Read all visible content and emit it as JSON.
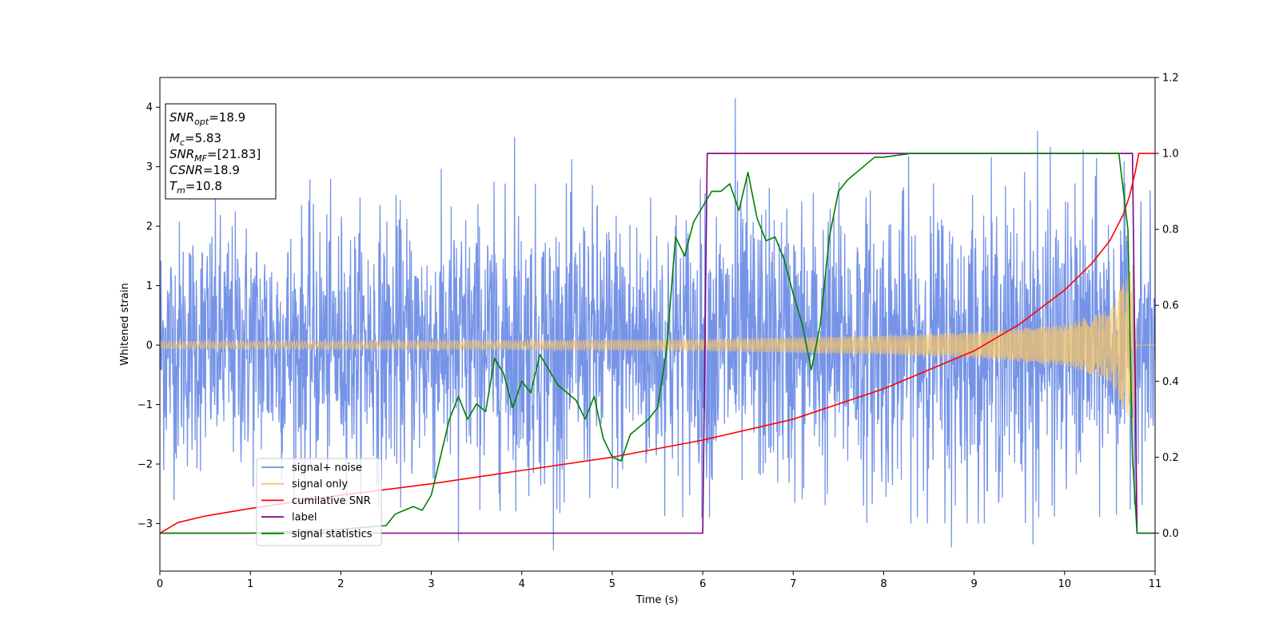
{
  "chart_data": {
    "type": "line",
    "xlabel": "Time (s)",
    "ylabel": "Whitened strain",
    "xlim": [
      0,
      11
    ],
    "ylim_left": [
      -3.8,
      4.5
    ],
    "ylim_right": [
      -0.1,
      1.2
    ],
    "x_ticks": [
      "0",
      "1",
      "2",
      "3",
      "4",
      "5",
      "6",
      "7",
      "8",
      "9",
      "10",
      "11"
    ],
    "y_left_ticks": [
      "−3",
      "−2",
      "−1",
      "0",
      "1",
      "2",
      "3",
      "4"
    ],
    "y_right_ticks": [
      "0.0",
      "0.2",
      "0.4",
      "0.6",
      "0.8",
      "1.0",
      "1.2"
    ],
    "grid": false,
    "legend_position": "lower-left",
    "colors": {
      "noise": "#6f8ee6",
      "signal": "#f5c46b",
      "cumulative": "#ff0000",
      "label": "#800080",
      "statistics": "#008000"
    },
    "series": [
      {
        "name": "signal+ noise",
        "axis": "left",
        "kind": "noise-band",
        "envelope_approx": {
          "x": [
            0,
            2,
            4,
            6,
            8,
            9.5,
            10.5,
            11
          ],
          "lower": [
            -2.6,
            -2.7,
            -2.8,
            -2.9,
            -3.0,
            -3.0,
            -2.9,
            -2.6
          ],
          "upper": [
            2.7,
            2.8,
            3.1,
            3.2,
            3.3,
            3.3,
            3.4,
            2.5
          ]
        },
        "peaks_approx": [
          {
            "x": 6.36,
            "y": 4.15
          },
          {
            "x": 3.92,
            "y": 3.5
          },
          {
            "x": 9.7,
            "y": 3.6
          },
          {
            "x": 4.35,
            "y": -3.45
          },
          {
            "x": 8.75,
            "y": -3.4
          },
          {
            "x": 9.65,
            "y": -3.35
          },
          {
            "x": 3.3,
            "y": -3.3
          }
        ]
      },
      {
        "name": "signal only",
        "axis": "left",
        "kind": "chirp",
        "amplitude_approx": {
          "x": [
            0,
            2,
            4,
            6,
            8,
            9,
            10,
            10.5,
            10.78,
            10.8,
            11
          ],
          "y": [
            0.06,
            0.07,
            0.08,
            0.1,
            0.16,
            0.22,
            0.35,
            0.6,
            1.45,
            0.0,
            0.0
          ]
        }
      },
      {
        "name": "cumilative SNR",
        "axis": "right",
        "x": [
          0,
          0.2,
          0.5,
          1,
          2,
          3,
          4,
          5,
          6,
          7,
          8,
          9,
          9.5,
          10,
          10.3,
          10.5,
          10.65,
          10.72,
          10.78,
          10.82,
          11
        ],
        "y": [
          0.0,
          0.028,
          0.045,
          0.065,
          0.1,
          0.13,
          0.165,
          0.2,
          0.245,
          0.3,
          0.38,
          0.48,
          0.55,
          0.64,
          0.71,
          0.77,
          0.84,
          0.89,
          0.95,
          1.0,
          1.0
        ]
      },
      {
        "name": "label",
        "axis": "right",
        "x": [
          0,
          6.0,
          6.05,
          10.75,
          10.8,
          11
        ],
        "y": [
          0.0,
          0.0,
          1.0,
          1.0,
          0.0,
          0.0
        ]
      },
      {
        "name": "signal statistics",
        "axis": "right",
        "x": [
          0,
          1,
          2,
          2.5,
          2.6,
          2.7,
          2.8,
          2.9,
          3.0,
          3.1,
          3.2,
          3.3,
          3.4,
          3.5,
          3.6,
          3.7,
          3.8,
          3.9,
          4.0,
          4.1,
          4.2,
          4.3,
          4.4,
          4.5,
          4.6,
          4.7,
          4.8,
          4.9,
          5.0,
          5.1,
          5.2,
          5.3,
          5.4,
          5.5,
          5.6,
          5.7,
          5.8,
          5.9,
          6.0,
          6.1,
          6.2,
          6.3,
          6.4,
          6.5,
          6.6,
          6.7,
          6.8,
          6.9,
          7.0,
          7.1,
          7.2,
          7.3,
          7.4,
          7.5,
          7.6,
          7.7,
          7.8,
          7.9,
          8.0,
          8.3,
          9.0,
          10.0,
          10.6,
          10.7,
          10.75,
          10.8,
          10.9,
          11
        ],
        "y": [
          0.0,
          0.0,
          0.01,
          0.02,
          0.05,
          0.06,
          0.07,
          0.06,
          0.1,
          0.2,
          0.3,
          0.36,
          0.3,
          0.34,
          0.32,
          0.46,
          0.42,
          0.33,
          0.4,
          0.37,
          0.47,
          0.43,
          0.39,
          0.37,
          0.35,
          0.3,
          0.36,
          0.25,
          0.2,
          0.19,
          0.26,
          0.28,
          0.3,
          0.33,
          0.48,
          0.78,
          0.73,
          0.82,
          0.86,
          0.9,
          0.9,
          0.92,
          0.85,
          0.95,
          0.83,
          0.77,
          0.78,
          0.72,
          0.63,
          0.55,
          0.43,
          0.55,
          0.78,
          0.9,
          0.93,
          0.95,
          0.97,
          0.99,
          0.99,
          1.0,
          1.0,
          1.0,
          1.0,
          0.8,
          0.2,
          0.0,
          0.0,
          0.0
        ]
      }
    ],
    "annotation": [
      {
        "base": "SNR",
        "sub": "opt",
        "value": "=18.9"
      },
      {
        "base": "M",
        "sub": "c",
        "value": "=5.83"
      },
      {
        "base": "SNR",
        "sub": "MF",
        "value": "=[21.83]"
      },
      {
        "base": "CSNR",
        "sub": "",
        "value": "=18.9"
      },
      {
        "base": "T",
        "sub": "m",
        "value": "=10.8"
      }
    ]
  }
}
